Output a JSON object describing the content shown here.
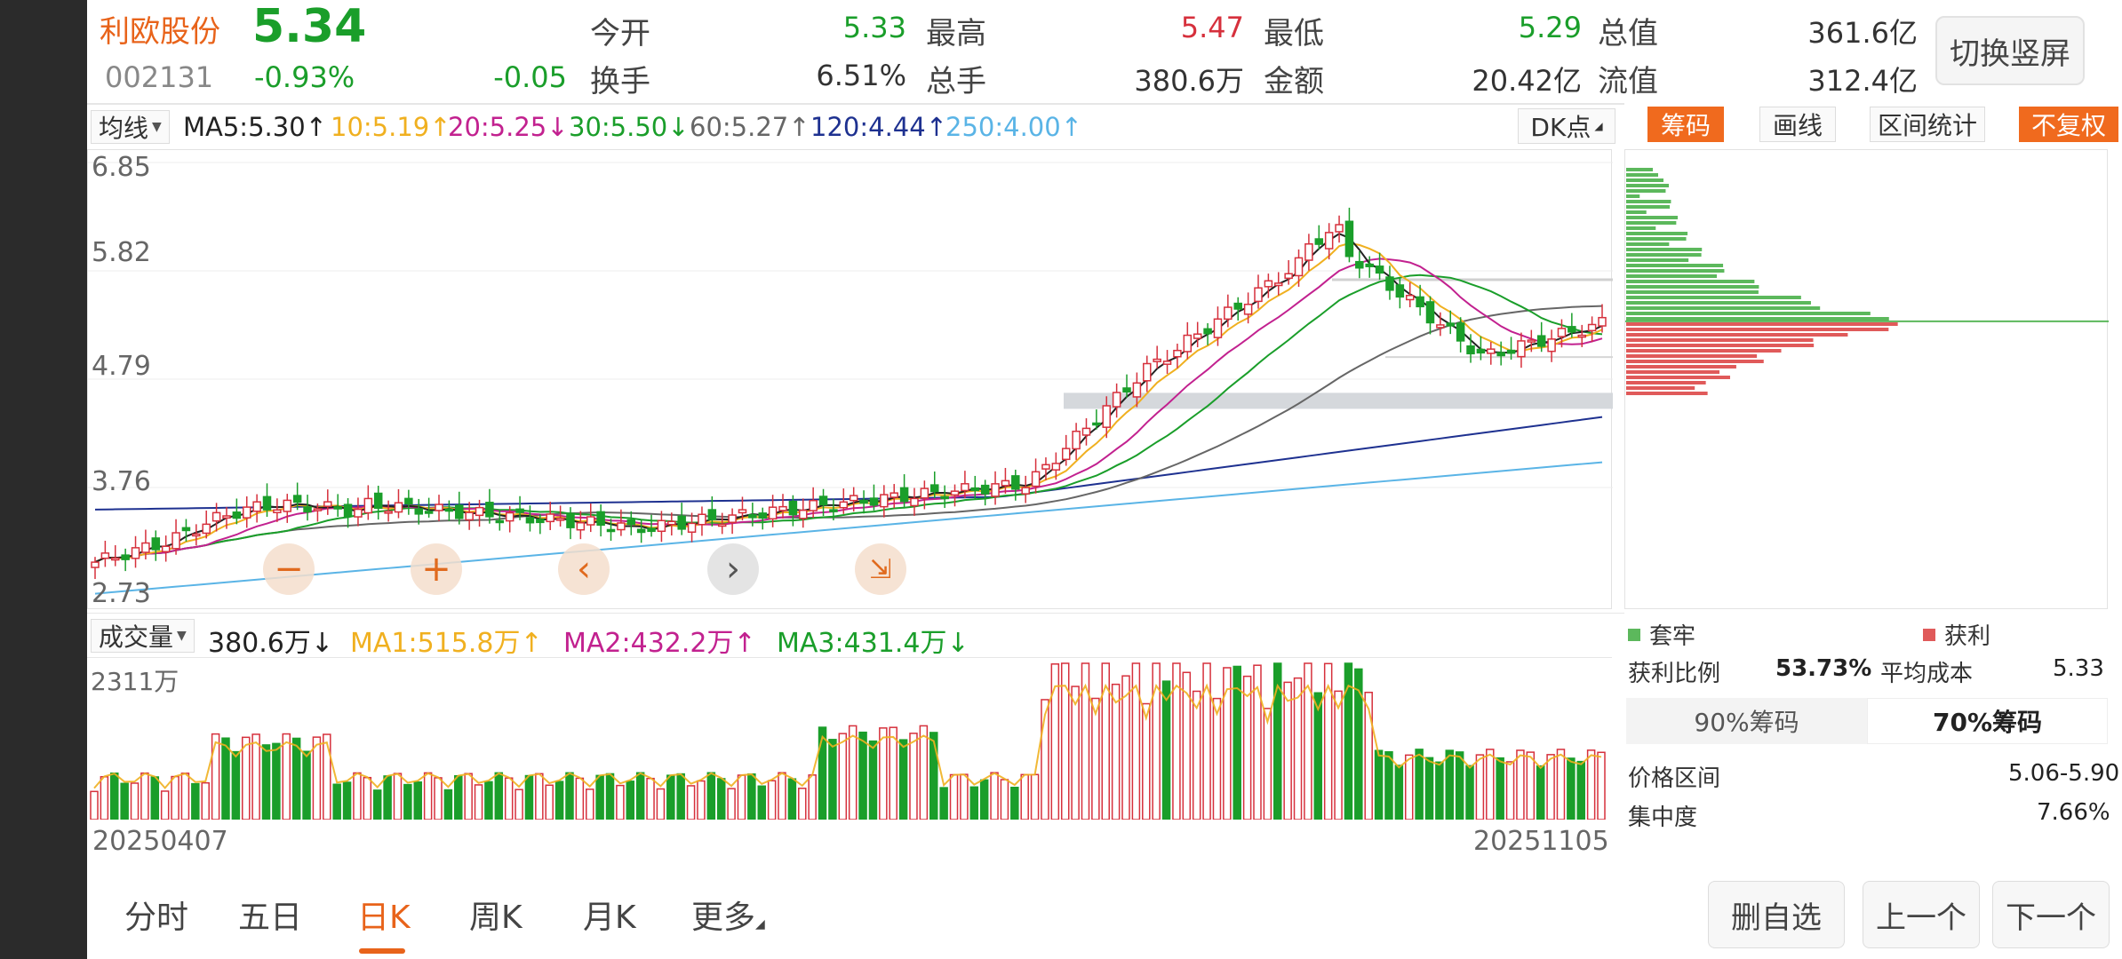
{
  "quote": {
    "name": "利欧股份",
    "price": "5.34",
    "code": "002131",
    "change_pct": "-0.93%",
    "change": "-0.05",
    "fields": [
      {
        "label": "今开",
        "value": "5.33",
        "color": "#1a9e2a"
      },
      {
        "label": "最高",
        "value": "5.47",
        "color": "#d6303c"
      },
      {
        "label": "最低",
        "value": "5.29",
        "color": "#1a9e2a"
      },
      {
        "label": "总值",
        "value": "361.6亿",
        "color": "#333333"
      },
      {
        "label": "换手",
        "value": "6.51%",
        "color": "#333333"
      },
      {
        "label": "总手",
        "value": "380.6万",
        "color": "#333333"
      },
      {
        "label": "金额",
        "value": "20.42亿",
        "color": "#333333"
      },
      {
        "label": "流值",
        "value": "312.4亿",
        "color": "#333333"
      }
    ],
    "switch_label": "切换竖屏"
  },
  "ma_bar": {
    "selector": "均线",
    "items": [
      {
        "text": "MA5:5.30↑",
        "color": "#222222"
      },
      {
        "text": "10:5.19↑",
        "color": "#f0b020"
      },
      {
        "text": "20:5.25↓",
        "color": "#c2218f"
      },
      {
        "text": "30:5.50↓",
        "color": "#1a9e2a"
      },
      {
        "text": "60:5.27↑",
        "color": "#666666"
      },
      {
        "text": "120:4.44↑",
        "color": "#1e3190"
      },
      {
        "text": "250:4.00↑",
        "color": "#5ab4e6"
      }
    ],
    "dk_label": "DK点"
  },
  "tools": {
    "chips": "筹码",
    "draw": "画线",
    "interval": "区间统计",
    "adjust": "不复权"
  },
  "price_axis": [
    "6.85",
    "5.82",
    "4.79",
    "3.76",
    "2.73"
  ],
  "nav": {
    "zoom_out": "−",
    "zoom_in": "+",
    "prev": "‹",
    "next": "›",
    "shrink": "⇲"
  },
  "volume": {
    "selector": "成交量",
    "items": [
      {
        "text": "380.6万↓",
        "color": "#222222"
      },
      {
        "text": "MA1:515.8万↑",
        "color": "#f0b020"
      },
      {
        "text": "MA2:432.2万↑",
        "color": "#c2218f"
      },
      {
        "text": "MA3:431.4万↓",
        "color": "#1a9e2a"
      }
    ],
    "max_label": "2311万"
  },
  "dates": {
    "start": "20250407",
    "end": "20251105"
  },
  "chip_panel": {
    "legend_trapped": "套牢",
    "legend_profit": "获利",
    "profit_ratio_label": "获利比例",
    "profit_ratio": "53.73%",
    "avg_cost_label": "平均成本",
    "avg_cost": "5.33",
    "tab_90": "90%筹码",
    "tab_70": "70%筹码",
    "range_label": "价格区间",
    "range_value": "5.06-5.90",
    "concentration_label": "集中度",
    "concentration_value": "7.66%"
  },
  "bottom_tabs": [
    "分时",
    "五日",
    "日K",
    "周K",
    "月K",
    "更多"
  ],
  "actions": {
    "delete": "删自选",
    "prev": "上一个",
    "next": "下一个"
  },
  "chart_data": {
    "type": "candlestick",
    "ylim": [
      2.73,
      6.85
    ],
    "period": [
      "20250407",
      "20251105"
    ],
    "last_close": 5.34,
    "high": 5.47,
    "low": 5.29,
    "moving_averages": {
      "MA5": 5.3,
      "MA10": 5.19,
      "MA20": 5.25,
      "MA30": 5.5,
      "MA60": 5.27,
      "MA120": 4.44,
      "MA250": 4.0
    },
    "volume_max": "2311万",
    "volume_last": "380.6万"
  }
}
